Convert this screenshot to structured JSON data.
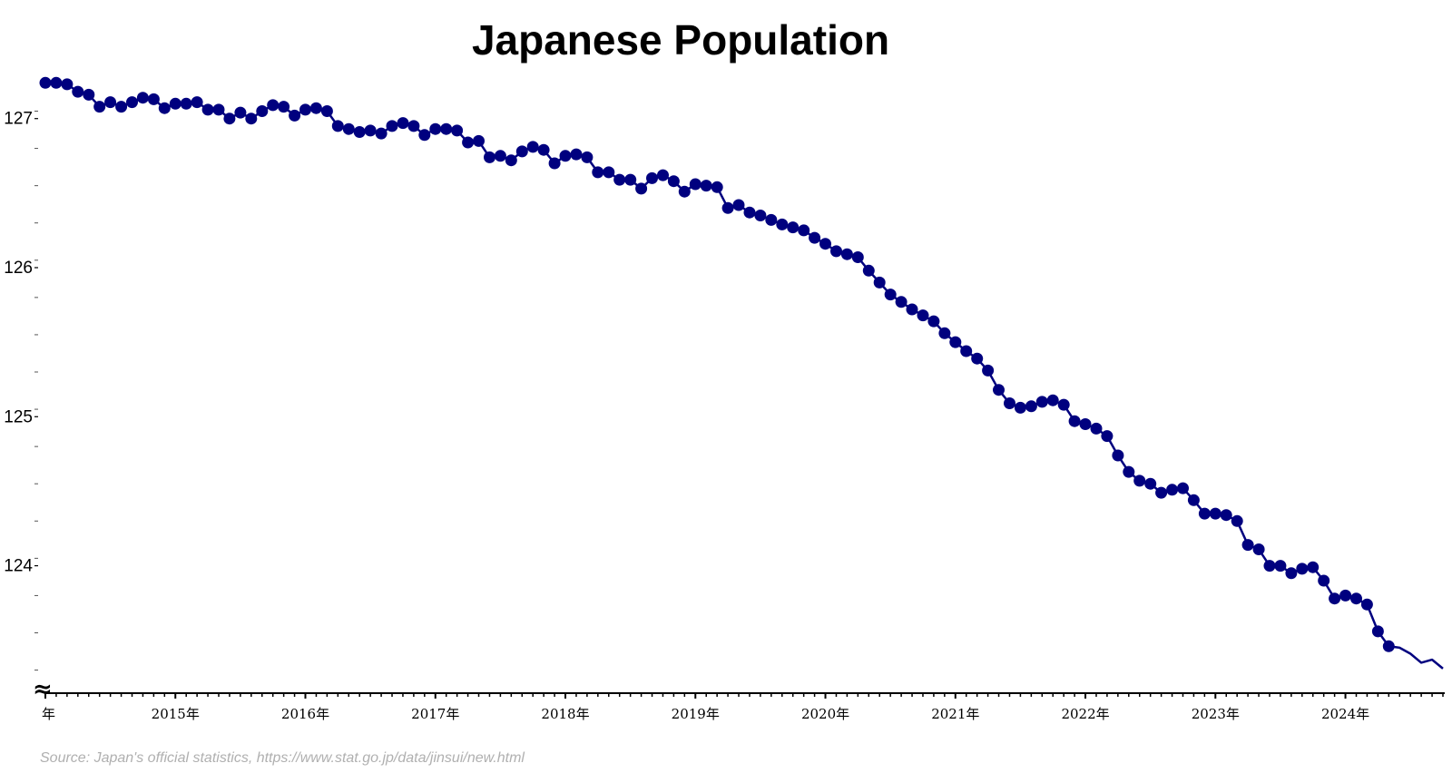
{
  "chart_data": {
    "type": "line",
    "title": "Japanese Population",
    "xlabel": "",
    "ylabel": "",
    "ylim": [
      123.2,
      127.4
    ],
    "y_ticks": [
      124,
      125,
      126,
      127
    ],
    "y_tick_labels": [
      "124",
      "125",
      "126",
      "127"
    ],
    "x_range": [
      "2014-01",
      "2024-10"
    ],
    "x_tick_labels": [
      "年",
      "2015年",
      "2016年",
      "2017年",
      "2018年",
      "2019年",
      "2020年",
      "2021年",
      "2022年",
      "2023年",
      "2024年"
    ],
    "axis_break_symbol": "≈",
    "line_color": "#00007f",
    "marker_color": "#00007f",
    "series": [
      {
        "points": [
          [
            "2014-01",
            127.24
          ],
          [
            "2014-02",
            127.24
          ],
          [
            "2014-03",
            127.23
          ],
          [
            "2014-04",
            127.18
          ],
          [
            "2014-05",
            127.16
          ],
          [
            "2014-06",
            127.08
          ],
          [
            "2014-07",
            127.11
          ],
          [
            "2014-08",
            127.08
          ],
          [
            "2014-09",
            127.11
          ],
          [
            "2014-10",
            127.14
          ],
          [
            "2014-11",
            127.13
          ],
          [
            "2014-12",
            127.07
          ],
          [
            "2015-01",
            127.1
          ],
          [
            "2015-02",
            127.1
          ],
          [
            "2015-03",
            127.11
          ],
          [
            "2015-04",
            127.06
          ],
          [
            "2015-05",
            127.06
          ],
          [
            "2015-06",
            127.0
          ],
          [
            "2015-07",
            127.04
          ],
          [
            "2015-08",
            127.0
          ],
          [
            "2015-09",
            127.05
          ],
          [
            "2015-10",
            127.09
          ],
          [
            "2015-11",
            127.08
          ],
          [
            "2015-12",
            127.02
          ],
          [
            "2016-01",
            127.06
          ],
          [
            "2016-02",
            127.07
          ],
          [
            "2016-03",
            127.05
          ],
          [
            "2016-04",
            126.95
          ],
          [
            "2016-05",
            126.93
          ],
          [
            "2016-06",
            126.91
          ],
          [
            "2016-07",
            126.92
          ],
          [
            "2016-08",
            126.9
          ],
          [
            "2016-09",
            126.95
          ],
          [
            "2016-10",
            126.97
          ],
          [
            "2016-11",
            126.95
          ],
          [
            "2016-12",
            126.89
          ],
          [
            "2017-01",
            126.93
          ],
          [
            "2017-02",
            126.93
          ],
          [
            "2017-03",
            126.92
          ],
          [
            "2017-04",
            126.84
          ],
          [
            "2017-05",
            126.85
          ],
          [
            "2017-06",
            126.74
          ],
          [
            "2017-07",
            126.75
          ],
          [
            "2017-08",
            126.72
          ],
          [
            "2017-09",
            126.78
          ],
          [
            "2017-10",
            126.81
          ],
          [
            "2017-11",
            126.79
          ],
          [
            "2017-12",
            126.7
          ],
          [
            "2018-01",
            126.75
          ],
          [
            "2018-02",
            126.76
          ],
          [
            "2018-03",
            126.74
          ],
          [
            "2018-04",
            126.64
          ],
          [
            "2018-05",
            126.64
          ],
          [
            "2018-06",
            126.59
          ],
          [
            "2018-07",
            126.59
          ],
          [
            "2018-08",
            126.53
          ],
          [
            "2018-09",
            126.6
          ],
          [
            "2018-10",
            126.62
          ],
          [
            "2018-11",
            126.58
          ],
          [
            "2018-12",
            126.51
          ],
          [
            "2019-01",
            126.56
          ],
          [
            "2019-02",
            126.55
          ],
          [
            "2019-03",
            126.54
          ],
          [
            "2019-04",
            126.4
          ],
          [
            "2019-05",
            126.42
          ],
          [
            "2019-06",
            126.37
          ],
          [
            "2019-07",
            126.35
          ],
          [
            "2019-08",
            126.32
          ],
          [
            "2019-09",
            126.29
          ],
          [
            "2019-10",
            126.27
          ],
          [
            "2019-11",
            126.25
          ],
          [
            "2019-12",
            126.2
          ],
          [
            "2020-01",
            126.16
          ],
          [
            "2020-02",
            126.11
          ],
          [
            "2020-03",
            126.09
          ],
          [
            "2020-04",
            126.07
          ],
          [
            "2020-05",
            125.98
          ],
          [
            "2020-06",
            125.9
          ],
          [
            "2020-07",
            125.82
          ],
          [
            "2020-08",
            125.77
          ],
          [
            "2020-09",
            125.72
          ],
          [
            "2020-10",
            125.68
          ],
          [
            "2020-11",
            125.64
          ],
          [
            "2020-12",
            125.56
          ],
          [
            "2021-01",
            125.5
          ],
          [
            "2021-02",
            125.44
          ],
          [
            "2021-03",
            125.39
          ],
          [
            "2021-04",
            125.31
          ],
          [
            "2021-05",
            125.18
          ],
          [
            "2021-06",
            125.09
          ],
          [
            "2021-07",
            125.06
          ],
          [
            "2021-08",
            125.07
          ],
          [
            "2021-09",
            125.1
          ],
          [
            "2021-10",
            125.11
          ],
          [
            "2021-11",
            125.08
          ],
          [
            "2021-12",
            124.97
          ],
          [
            "2022-01",
            124.95
          ],
          [
            "2022-02",
            124.92
          ],
          [
            "2022-03",
            124.87
          ],
          [
            "2022-04",
            124.74
          ],
          [
            "2022-05",
            124.63
          ],
          [
            "2022-06",
            124.57
          ],
          [
            "2022-07",
            124.55
          ],
          [
            "2022-08",
            124.49
          ],
          [
            "2022-09",
            124.51
          ],
          [
            "2022-10",
            124.52
          ],
          [
            "2022-11",
            124.44
          ],
          [
            "2022-12",
            124.35
          ],
          [
            "2023-01",
            124.35
          ],
          [
            "2023-02",
            124.34
          ],
          [
            "2023-03",
            124.3
          ],
          [
            "2023-04",
            124.14
          ],
          [
            "2023-05",
            124.11
          ],
          [
            "2023-06",
            124.0
          ],
          [
            "2023-07",
            124.0
          ],
          [
            "2023-08",
            123.95
          ],
          [
            "2023-09",
            123.98
          ],
          [
            "2023-10",
            123.99
          ],
          [
            "2023-11",
            123.9
          ],
          [
            "2023-12",
            123.78
          ],
          [
            "2024-01",
            123.8
          ],
          [
            "2024-02",
            123.78
          ],
          [
            "2024-03",
            123.74
          ],
          [
            "2024-04",
            123.56
          ],
          [
            "2024-05",
            123.46
          ],
          [
            "2024-06",
            123.45
          ],
          [
            "2024-07",
            123.41
          ],
          [
            "2024-08",
            123.35
          ],
          [
            "2024-09",
            123.37
          ],
          [
            "2024-10",
            123.31
          ]
        ],
        "marker_until": "2024-05"
      }
    ]
  },
  "source": "Source: Japan's official statistics, https://www.stat.go.jp/data/jinsui/new.html"
}
